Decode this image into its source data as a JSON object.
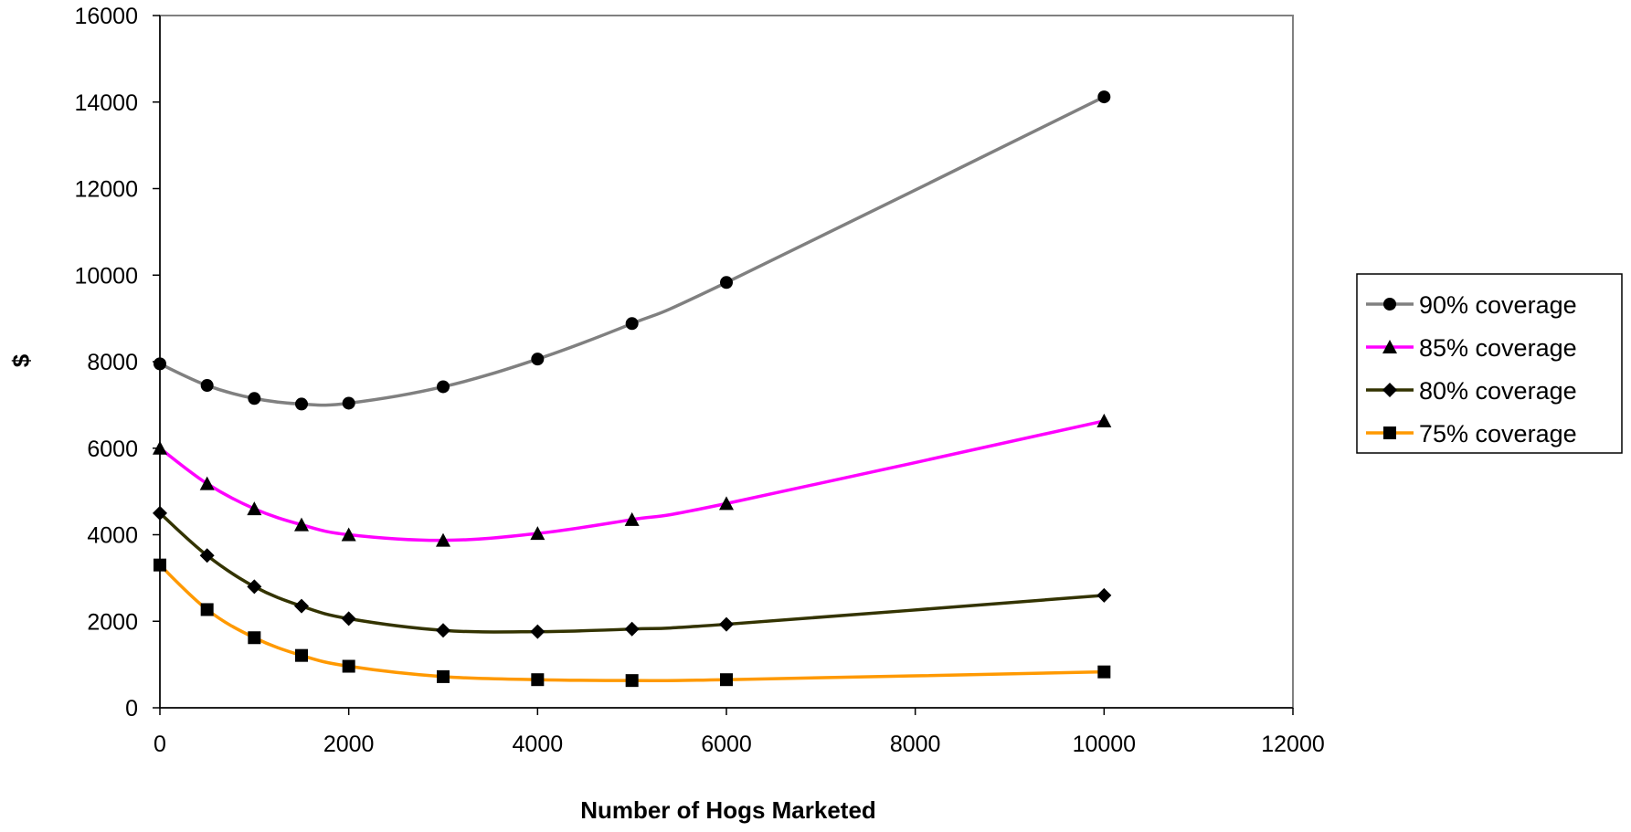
{
  "chart_data": {
    "type": "line",
    "title": "",
    "xlabel": "Number of Hogs Marketed",
    "ylabel": "$",
    "xlim": [
      0,
      12000
    ],
    "ylim": [
      0,
      16000
    ],
    "xticks": [
      0,
      2000,
      4000,
      6000,
      8000,
      10000,
      12000
    ],
    "yticks": [
      0,
      2000,
      4000,
      6000,
      8000,
      10000,
      12000,
      14000,
      16000
    ],
    "grid": false,
    "legend_position": "right",
    "x": [
      0,
      500,
      1000,
      1500,
      2000,
      3000,
      4000,
      5000,
      6000,
      10000
    ],
    "series": [
      {
        "name": "90% coverage",
        "color": "#808080",
        "marker": "circle",
        "values": [
          7950,
          7450,
          7150,
          7020,
          7040,
          7420,
          8060,
          8880,
          9830,
          14120
        ]
      },
      {
        "name": "85% coverage",
        "color": "#ff00ff",
        "marker": "triangle",
        "values": [
          6000,
          5180,
          4600,
          4230,
          4000,
          3870,
          4030,
          4350,
          4720,
          6630
        ]
      },
      {
        "name": "80% coverage",
        "color": "#333300",
        "marker": "diamond",
        "values": [
          4500,
          3520,
          2800,
          2350,
          2060,
          1790,
          1760,
          1820,
          1930,
          2600
        ]
      },
      {
        "name": "75% coverage",
        "color": "#ff9900",
        "marker": "square",
        "values": [
          3300,
          2270,
          1620,
          1210,
          960,
          720,
          650,
          630,
          650,
          830
        ]
      }
    ]
  }
}
